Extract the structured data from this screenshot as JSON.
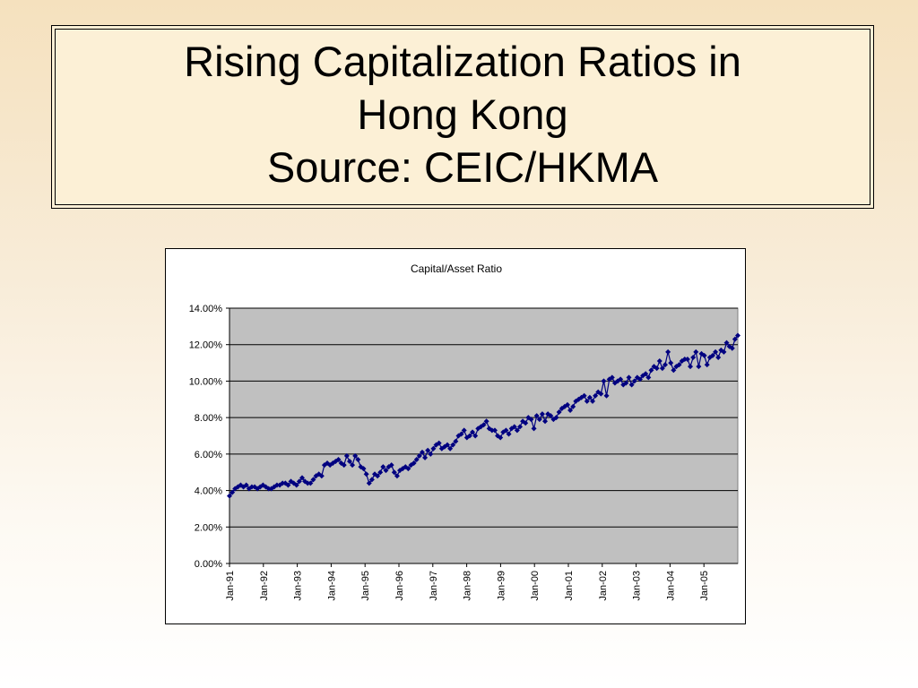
{
  "slide": {
    "title_line1": "Rising Capitalization Ratios in",
    "title_line2": "Hong Kong",
    "title_line3": "Source: CEIC/HKMA"
  },
  "chart_data": {
    "type": "line",
    "title": "Capital/Asset Ratio",
    "xlabel": "",
    "ylabel": "",
    "ylim": [
      0,
      14
    ],
    "y_ticks": [
      "0.00%",
      "2.00%",
      "4.00%",
      "6.00%",
      "8.00%",
      "10.00%",
      "12.00%",
      "14.00%"
    ],
    "x_tick_labels": [
      "Jan-91",
      "Jan-92",
      "Jan-93",
      "Jan-94",
      "Jan-95",
      "Jan-96",
      "Jan-97",
      "Jan-98",
      "Jan-99",
      "Jan-00",
      "Jan-01",
      "Jan-02",
      "Jan-03",
      "Jan-04",
      "Jan-05"
    ],
    "x_start": "Jan-91",
    "x_end": "Dec-05",
    "grid": true,
    "plot_background": "#c0c0c0",
    "series_color": "#000080",
    "marker": "diamond",
    "series": [
      {
        "values": [
          3.7,
          3.9,
          4.1,
          4.2,
          4.3,
          4.2,
          4.3,
          4.1,
          4.2,
          4.2,
          4.1,
          4.2,
          4.3,
          4.2,
          4.1,
          4.1,
          4.2,
          4.3,
          4.3,
          4.4,
          4.4,
          4.3,
          4.5,
          4.4,
          4.3,
          4.5,
          4.7,
          4.5,
          4.4,
          4.4,
          4.6,
          4.8,
          4.9,
          4.8,
          5.4,
          5.5,
          5.4,
          5.5,
          5.6,
          5.7,
          5.5,
          5.4,
          5.9,
          5.6,
          5.4,
          5.9,
          5.7,
          5.3,
          5.2,
          4.9,
          4.4,
          4.6,
          4.9,
          4.8,
          5.0,
          5.3,
          5.1,
          5.3,
          5.4,
          5.0,
          4.8,
          5.1,
          5.2,
          5.3,
          5.2,
          5.4,
          5.5,
          5.7,
          5.9,
          6.1,
          5.8,
          6.2,
          6.0,
          6.3,
          6.5,
          6.6,
          6.3,
          6.4,
          6.5,
          6.3,
          6.5,
          6.7,
          7.0,
          7.1,
          7.3,
          6.9,
          7.0,
          7.2,
          7.0,
          7.4,
          7.5,
          7.6,
          7.8,
          7.4,
          7.3,
          7.3,
          7.0,
          6.9,
          7.2,
          7.3,
          7.1,
          7.4,
          7.5,
          7.3,
          7.5,
          7.8,
          7.7,
          8.0,
          7.9,
          7.4,
          8.1,
          7.9,
          8.2,
          7.8,
          8.2,
          8.1,
          7.9,
          8.0,
          8.3,
          8.5,
          8.6,
          8.7,
          8.4,
          8.6,
          8.9,
          9.0,
          9.1,
          9.2,
          8.9,
          9.1,
          8.9,
          9.2,
          9.4,
          9.3,
          10.0,
          9.2,
          10.1,
          10.2,
          9.9,
          10.0,
          10.1,
          9.8,
          9.9,
          10.2,
          9.8,
          10.0,
          10.2,
          10.1,
          10.3,
          10.4,
          10.2,
          10.6,
          10.8,
          10.7,
          11.1,
          10.7,
          10.9,
          11.6,
          11.0,
          10.6,
          10.8,
          10.9,
          11.1,
          11.2,
          11.2,
          10.8,
          11.3,
          11.6,
          10.8,
          11.5,
          11.4,
          10.9,
          11.3,
          11.4,
          11.6,
          11.3,
          11.7,
          11.6,
          12.1,
          11.9,
          11.8,
          12.3,
          12.5
        ]
      }
    ]
  }
}
